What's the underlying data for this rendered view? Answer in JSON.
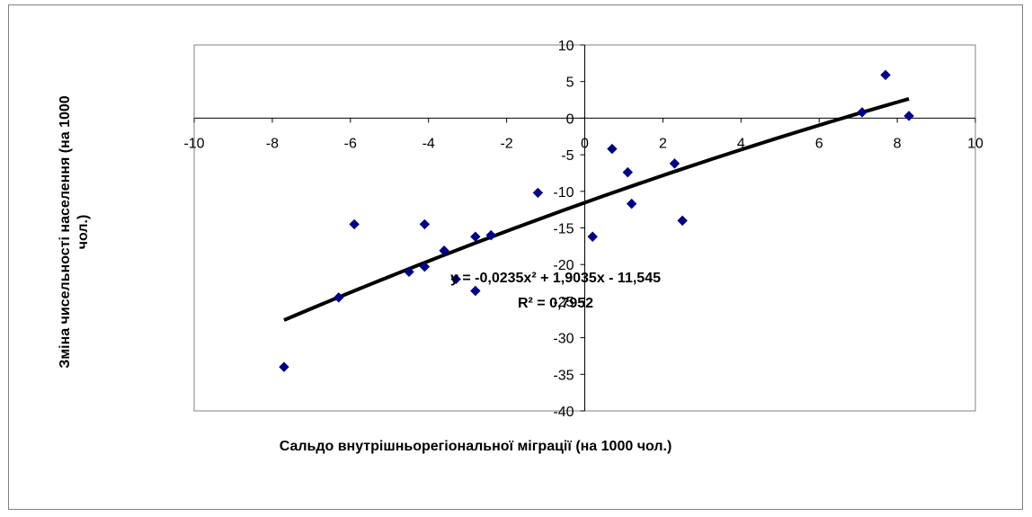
{
  "chart_data": {
    "type": "scatter",
    "title": "",
    "xlabel": "Сальдо внутрішньорегіональної міграції (на 1000 чол.)",
    "ylabel": "Зміна чисельності населення (на 1000 чол.)",
    "xlim": [
      -10,
      10
    ],
    "ylim": [
      -40,
      10
    ],
    "x_ticks": [
      -10,
      -8,
      -6,
      -4,
      -2,
      0,
      2,
      4,
      6,
      8,
      10
    ],
    "y_ticks": [
      10,
      5,
      0,
      -5,
      -10,
      -15,
      -20,
      -25,
      -30,
      -35,
      -40
    ],
    "x_tick_labels": [
      "-10",
      "-8",
      "-6",
      "-4",
      "-2",
      "0",
      "2",
      "4",
      "6",
      "8",
      "10"
    ],
    "y_tick_labels": [
      "10",
      "5",
      "0",
      "-5",
      "-10",
      "-15",
      "-20",
      "-25",
      "-30",
      "-35",
      "-40"
    ],
    "grid": false,
    "legend": "none",
    "marker_color": "#000080",
    "trendline_color": "#000000",
    "points": [
      {
        "x": -7.7,
        "y": -34.0
      },
      {
        "x": -6.3,
        "y": -24.5
      },
      {
        "x": -5.9,
        "y": -14.5
      },
      {
        "x": -4.5,
        "y": -21.0
      },
      {
        "x": -4.1,
        "y": -20.3
      },
      {
        "x": -4.1,
        "y": -14.5
      },
      {
        "x": -3.6,
        "y": -18.1
      },
      {
        "x": -3.3,
        "y": -22.0
      },
      {
        "x": -2.8,
        "y": -16.2
      },
      {
        "x": -2.8,
        "y": -23.6
      },
      {
        "x": -2.4,
        "y": -16.0
      },
      {
        "x": -1.2,
        "y": -10.2
      },
      {
        "x": 0.2,
        "y": -16.2
      },
      {
        "x": 0.7,
        "y": -4.2
      },
      {
        "x": 1.1,
        "y": -7.4
      },
      {
        "x": 1.2,
        "y": -11.7
      },
      {
        "x": 2.3,
        "y": -6.2
      },
      {
        "x": 2.5,
        "y": -14.0
      },
      {
        "x": 7.1,
        "y": 0.8
      },
      {
        "x": 7.7,
        "y": 5.9
      },
      {
        "x": 8.3,
        "y": 0.3
      }
    ],
    "trendline": {
      "type": "polynomial",
      "coefficients": [
        -0.0235,
        1.9035,
        -11.545
      ],
      "x_range": [
        -7.7,
        8.3
      ],
      "equation_label": "y = -0,0235x² + 1,9035x - 11,545",
      "r2_label": "R² = 0,7952"
    }
  }
}
